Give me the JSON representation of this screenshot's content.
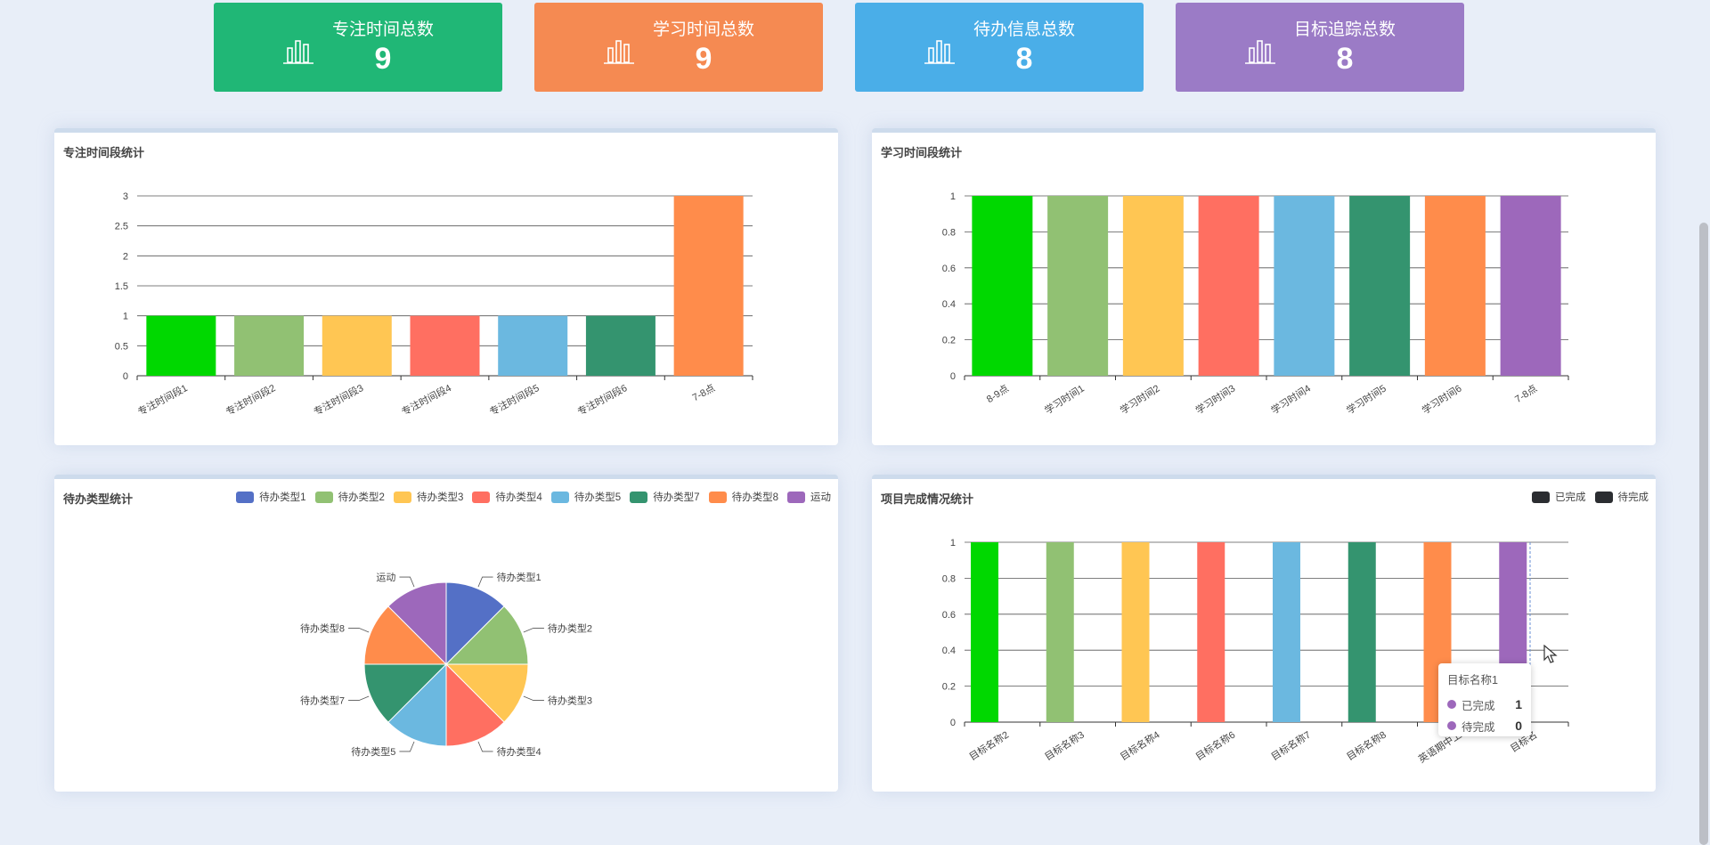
{
  "stats": [
    {
      "label": "专注时间总数",
      "value": "9",
      "color": "#20b776",
      "icon": "bar-chart-icon"
    },
    {
      "label": "学习时间总数",
      "value": "9",
      "color": "#f58a52",
      "icon": "bar-chart-icon"
    },
    {
      "label": "待办信息总数",
      "value": "8",
      "color": "#4aaee8",
      "icon": "bar-chart-icon"
    },
    {
      "label": "目标追踪总数",
      "value": "8",
      "color": "#9b7bc6",
      "icon": "bar-chart-icon"
    }
  ],
  "palette": [
    "#00d800",
    "#91c173",
    "#ffc653",
    "#ff6f61",
    "#6bb8e0",
    "#34946f",
    "#ff8c4b",
    "#9d68bb"
  ],
  "chart_data": [
    {
      "type": "bar",
      "title": "专注时间段统计",
      "categories": [
        "专注时间段1",
        "专注时间段2",
        "专注时间段3",
        "专注时间段4",
        "专注时间段5",
        "专注时间段6",
        "7-8点"
      ],
      "values": [
        1,
        1,
        1,
        1,
        1,
        1,
        3
      ],
      "yticks": [
        "0",
        "0.5",
        "1",
        "1.5",
        "2",
        "2.5",
        "3"
      ],
      "ylim": [
        0,
        3
      ],
      "grid": true
    },
    {
      "type": "bar",
      "title": "学习时间段统计",
      "categories": [
        "8-9点",
        "学习时间1",
        "学习时间2",
        "学习时间3",
        "学习时间4",
        "学习时间5",
        "学习时间6",
        "7-8点"
      ],
      "values": [
        1,
        1,
        1,
        1,
        1,
        1,
        1,
        1
      ],
      "yticks": [
        "0",
        "0.2",
        "0.4",
        "0.6",
        "0.8",
        "1"
      ],
      "ylim": [
        0,
        1
      ],
      "grid": true
    },
    {
      "type": "pie",
      "title": "待办类型统计",
      "legend_position": "top-right",
      "labels": [
        "待办类型1",
        "待办类型2",
        "待办类型3",
        "待办类型4",
        "待办类型5",
        "待办类型7",
        "待办类型8",
        "运动"
      ],
      "values": [
        1,
        1,
        1,
        1,
        1,
        1,
        1,
        1
      ],
      "colors": [
        "#5470c6",
        "#91c173",
        "#ffc653",
        "#ff6f61",
        "#6bb8e0",
        "#34946f",
        "#ff8c4b",
        "#9d68bb"
      ]
    },
    {
      "type": "bar",
      "title": "项目完成情况统计",
      "legend_position": "top-right",
      "series": [
        {
          "name": "已完成",
          "values": [
            1,
            1,
            1,
            1,
            1,
            1,
            1,
            1
          ]
        },
        {
          "name": "待完成",
          "values": [
            0,
            0,
            0,
            0,
            0,
            0,
            0,
            0
          ]
        }
      ],
      "legend_color": "#2b2d31",
      "categories": [
        "目标名称2",
        "目标名称3",
        "目标名称4",
        "目标名称6",
        "目标名称7",
        "目标名称8",
        "英语期中上",
        "目标名称1"
      ],
      "tick_labels": [
        "目标名称2",
        "目标名称3",
        "目标名称4",
        "目标名称6",
        "目标名称7",
        "目标名称8",
        "英语期中上",
        "目标名"
      ],
      "yticks": [
        "0",
        "0.2",
        "0.4",
        "0.6",
        "0.8",
        "1"
      ],
      "ylim": [
        0,
        1
      ],
      "grid": true
    }
  ],
  "tooltip": {
    "title": "目标名称1",
    "rows": [
      {
        "name": "已完成",
        "value": "1",
        "color": "#9d68bb"
      },
      {
        "name": "待完成",
        "value": "0",
        "color": "#9d68bb"
      }
    ]
  }
}
